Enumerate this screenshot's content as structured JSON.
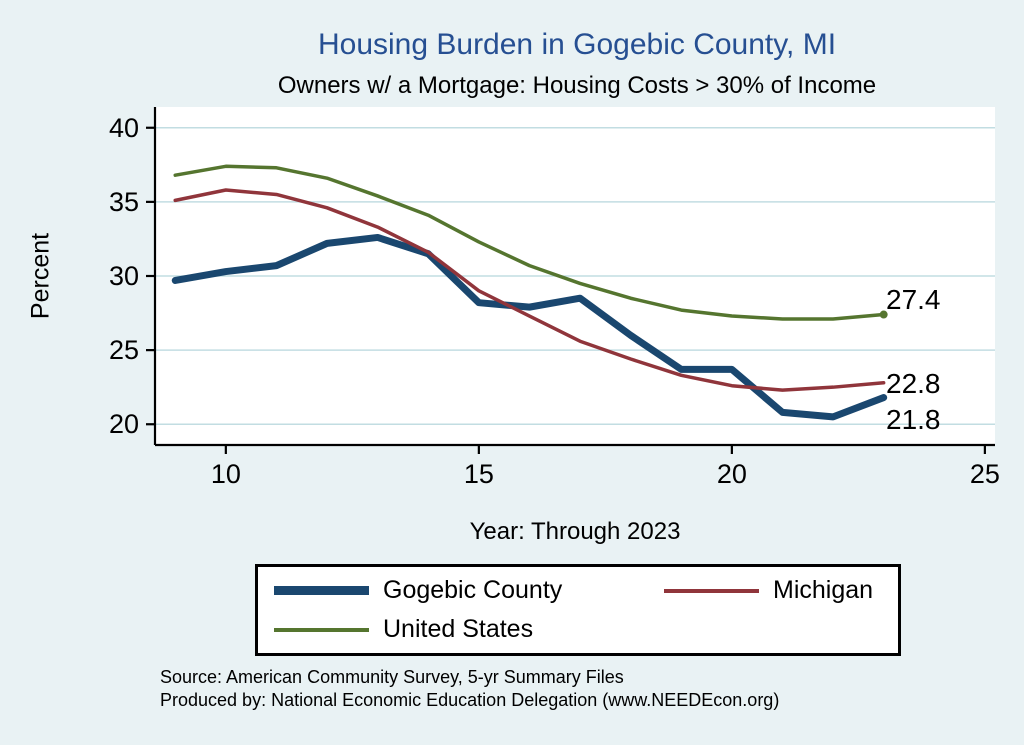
{
  "title": "Housing Burden in Gogebic County, MI",
  "subtitle": "Owners w/ a Mortgage: Housing Costs > 30% of Income",
  "colors": {
    "background": "#e9f2f4",
    "title": "#264f92",
    "grid": "#c2dde2",
    "axis": "#000000",
    "gogebic": "#1a476f",
    "michigan": "#90353b",
    "united_states": "#55752f"
  },
  "chart_data": {
    "type": "line",
    "title": "Housing Burden in Gogebic County, MI",
    "subtitle": "Owners w/ a Mortgage: Housing Costs > 30% of Income",
    "xlabel": "Year: Through 2023",
    "ylabel": "Percent",
    "x": [
      9,
      10,
      11,
      12,
      13,
      14,
      15,
      16,
      17,
      18,
      19,
      20,
      21,
      22,
      23
    ],
    "x_ticks": [
      10,
      15,
      20,
      25
    ],
    "y_ticks": [
      20,
      25,
      30,
      35,
      40
    ],
    "xlim": [
      8.6,
      25.2
    ],
    "ylim": [
      18.6,
      41.4
    ],
    "grid": true,
    "legend_position": "bottom",
    "series": [
      {
        "name": "Gogebic County",
        "color": "#1a476f",
        "width": 7,
        "end_label": "21.8",
        "values": [
          29.7,
          30.3,
          30.7,
          32.2,
          32.6,
          31.5,
          28.2,
          27.9,
          28.5,
          26.0,
          23.7,
          23.7,
          20.8,
          20.5,
          21.8
        ]
      },
      {
        "name": "Michigan",
        "color": "#90353b",
        "width": 3.5,
        "end_label": "22.8",
        "values": [
          35.1,
          35.8,
          35.5,
          34.6,
          33.3,
          31.6,
          29.0,
          27.3,
          25.6,
          24.4,
          23.3,
          22.6,
          22.3,
          22.5,
          22.8
        ]
      },
      {
        "name": "United States",
        "color": "#55752f",
        "width": 3.5,
        "end_label": "27.4",
        "values": [
          36.8,
          37.4,
          37.3,
          36.6,
          35.4,
          34.1,
          32.3,
          30.7,
          29.5,
          28.5,
          27.7,
          27.3,
          27.1,
          27.1,
          27.4
        ]
      }
    ]
  },
  "footer": {
    "source": "Source: American Community Survey, 5-yr Summary Files",
    "produced_by": "Produced by: National Economic Education Delegation (www.NEEDEcon.org)"
  }
}
